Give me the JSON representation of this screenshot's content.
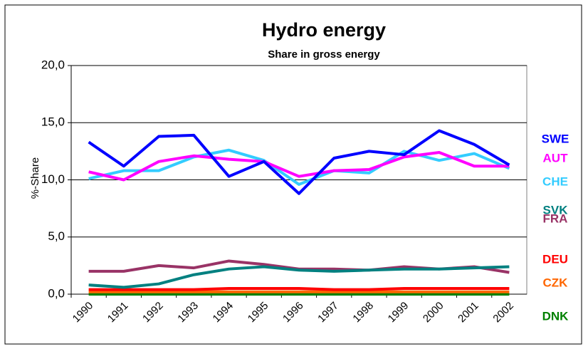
{
  "chart_data": {
    "type": "line",
    "title": "Hydro energy",
    "subtitle": "Share in gross energy",
    "y_label": "%-Share",
    "categories": [
      "1990",
      "1991",
      "1992",
      "1993",
      "1994",
      "1995",
      "1996",
      "1997",
      "1998",
      "1999",
      "2000",
      "2001",
      "2002"
    ],
    "ylim": [
      0,
      20
    ],
    "yticks": [
      {
        "value": 0,
        "label": "0,0"
      },
      {
        "value": 5,
        "label": "5,0"
      },
      {
        "value": 10,
        "label": "10,0"
      },
      {
        "value": 15,
        "label": "15,0"
      },
      {
        "value": 20,
        "label": "20,0"
      }
    ],
    "grid": true,
    "series": [
      {
        "name": "SWE",
        "color": "#0000ff",
        "values": [
          13.3,
          11.2,
          13.8,
          13.9,
          10.3,
          11.6,
          8.8,
          11.9,
          12.5,
          12.2,
          14.3,
          13.1,
          11.3
        ]
      },
      {
        "name": "AUT",
        "color": "#ff00ff",
        "values": [
          10.7,
          10.0,
          11.6,
          12.1,
          11.8,
          11.6,
          10.3,
          10.8,
          10.9,
          12.0,
          12.4,
          11.2,
          11.2
        ]
      },
      {
        "name": "CHE",
        "color": "#33ccff",
        "values": [
          10.1,
          10.8,
          10.8,
          12.0,
          12.6,
          11.7,
          9.6,
          10.8,
          10.6,
          12.5,
          11.7,
          12.3,
          11.0
        ]
      },
      {
        "name": "SVK",
        "color": "#008080",
        "values": [
          0.8,
          0.6,
          0.9,
          1.7,
          2.2,
          2.4,
          2.1,
          2.0,
          2.1,
          2.2,
          2.2,
          2.3,
          2.4
        ]
      },
      {
        "name": "FRA",
        "color": "#993366",
        "values": [
          2.0,
          2.0,
          2.5,
          2.3,
          2.9,
          2.6,
          2.2,
          2.2,
          2.1,
          2.4,
          2.2,
          2.4,
          1.9
        ]
      },
      {
        "name": "DEU",
        "color": "#ff0000",
        "values": [
          0.4,
          0.4,
          0.4,
          0.4,
          0.5,
          0.5,
          0.5,
          0.4,
          0.4,
          0.5,
          0.5,
          0.5,
          0.5
        ]
      },
      {
        "name": "CZK",
        "color": "#ff6600",
        "values": [
          0.2,
          0.2,
          0.2,
          0.2,
          0.2,
          0.2,
          0.2,
          0.2,
          0.2,
          0.2,
          0.2,
          0.2,
          0.2
        ]
      },
      {
        "name": "DNK",
        "color": "#008000",
        "values": [
          0.0,
          0.0,
          0.0,
          0.0,
          0.0,
          0.0,
          0.0,
          0.0,
          0.0,
          0.0,
          0.0,
          0.0,
          0.0
        ]
      }
    ]
  }
}
